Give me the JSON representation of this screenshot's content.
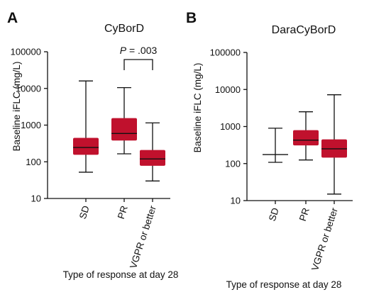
{
  "chart_data": [
    {
      "type": "boxplot",
      "panel": "A",
      "title": "CyBorD",
      "ylabel": "Baseline iFLC (mg/L)",
      "xlabel": "Type of response at day 28",
      "y_scale": "log",
      "ylim": [
        10,
        100000
      ],
      "yticks": [
        "100000",
        "10000",
        "1000",
        "100",
        "10"
      ],
      "color": "#c0112d",
      "categories": [
        "SD",
        "PR",
        "VGPR or better"
      ],
      "boxes": [
        {
          "category": "SD",
          "min": 52,
          "q1": 155,
          "median": 245,
          "q3": 450,
          "max": 16000
        },
        {
          "category": "PR",
          "min": 165,
          "q1": 380,
          "median": 590,
          "q3": 1550,
          "max": 10500
        },
        {
          "category": "VGPR or better",
          "min": 30,
          "q1": 78,
          "median": 120,
          "q3": 210,
          "max": 1150
        }
      ],
      "annotation": {
        "prefix": "P",
        "text": " = .003",
        "from": "PR",
        "to": "VGPR or better"
      }
    },
    {
      "type": "boxplot",
      "panel": "B",
      "title": "DaraCyBorD",
      "ylabel": "Baseline iFLC (mg/L)",
      "xlabel": "Type of response at day 28",
      "y_scale": "log",
      "ylim": [
        10,
        100000
      ],
      "yticks": [
        "100000",
        "10000",
        "1000",
        "100",
        "10"
      ],
      "color": "#c0112d",
      "categories": [
        "SD",
        "PR",
        "VGPR or better"
      ],
      "boxes": [
        {
          "category": "SD",
          "min": 108,
          "q1": 175,
          "median": 175,
          "q3": 175,
          "max": 900
        },
        {
          "category": "PR",
          "min": 125,
          "q1": 310,
          "median": 430,
          "q3": 800,
          "max": 2500
        },
        {
          "category": "VGPR or better",
          "min": 15,
          "q1": 145,
          "median": 250,
          "q3": 450,
          "max": 7200
        }
      ]
    }
  ]
}
